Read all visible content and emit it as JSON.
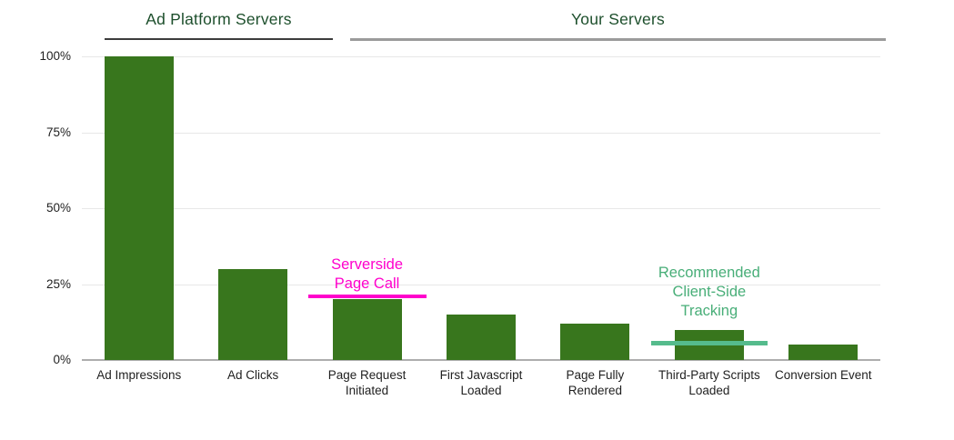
{
  "chart_data": {
    "type": "bar",
    "title": "",
    "xlabel": "",
    "ylabel": "",
    "unit": "%",
    "categories": [
      "Ad Impressions",
      "Ad Clicks",
      "Page Request Initiated",
      "First Javascript Loaded",
      "Page Fully Rendered",
      "Third-Party Scripts Loaded",
      "Conversion Event"
    ],
    "values": [
      100,
      30,
      20,
      15,
      12,
      10,
      5
    ],
    "ylim": [
      0,
      100
    ],
    "yticks": [
      {
        "label": "0%",
        "value": 0
      },
      {
        "label": "25%",
        "value": 25
      },
      {
        "label": "50%",
        "value": 50
      },
      {
        "label": "75%",
        "value": 75
      },
      {
        "label": "100%",
        "value": 100
      }
    ],
    "grid": true,
    "legend": false,
    "bar_color": "#38761d",
    "axis_text_color": "#1f1f1f",
    "groups": [
      {
        "label": "Ad Platform Servers",
        "categories": [
          "Ad Impressions",
          "Ad Clicks"
        ],
        "label_color": "#1d4f2c",
        "underline_color": "#3c3c3c"
      },
      {
        "label": "Your Servers",
        "categories": [
          "Page Request Initiated",
          "First Javascript Loaded",
          "Page Fully Rendered",
          "Third-Party Scripts Loaded",
          "Conversion Event"
        ],
        "label_color": "#1d4f2c",
        "underline_color": "#9b9b9b"
      }
    ],
    "annotations": [
      {
        "id": "serverside-page-call",
        "lines": [
          "Serverside",
          "Page Call"
        ],
        "text_color": "#ff00cc",
        "line_color": "#ff00cc",
        "line_value": 21,
        "category": "Page Request Initiated",
        "category_index": 2
      },
      {
        "id": "recommended-client-side-tracking",
        "lines": [
          "Recommended",
          "Client-Side",
          "Tracking"
        ],
        "text_color": "#48ae78",
        "line_color": "#55bb8c",
        "line_value": 5.5,
        "category": "Third-Party Scripts Loaded",
        "category_index": 5
      }
    ]
  }
}
